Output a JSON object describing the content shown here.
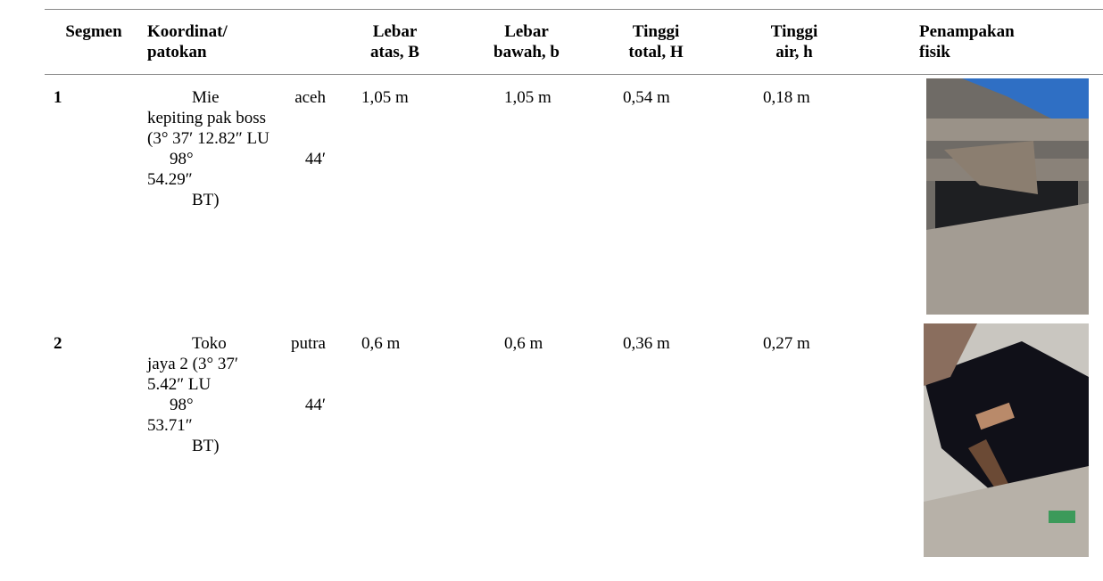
{
  "header": [
    [
      "Segmen"
    ],
    [
      "Koordinat/",
      "patokan"
    ],
    [
      "Lebar",
      "atas, B"
    ],
    [
      "Lebar",
      "bawah, b"
    ],
    [
      "Tinggi",
      "total, H"
    ],
    [
      "Tinggi",
      "air, h"
    ],
    [
      "Penampakan",
      "fisik"
    ]
  ],
  "rows": [
    {
      "segmen": "1",
      "koordinat": [
        "Mie aceh",
        "kepiting pak boss",
        "(3° 37′ 12.82″ LU",
        "98° 44′",
        "54.29″",
        "BT)"
      ],
      "lebar_atas": "1,05 m",
      "lebar_bawah": "1,05 m",
      "tinggi_total": "0,54 m",
      "tinggi_air": "0,18 m"
    },
    {
      "segmen": "2",
      "koordinat": [
        "Toko putra",
        "jaya 2 (3° 37′",
        "5.42″ LU",
        "98° 44′",
        "53.71″",
        "BT)"
      ],
      "lebar_atas": "0,6 m",
      "lebar_bawah": "0,6 m",
      "tinggi_total": "0,36 m",
      "tinggi_air": "0,27 m"
    }
  ]
}
